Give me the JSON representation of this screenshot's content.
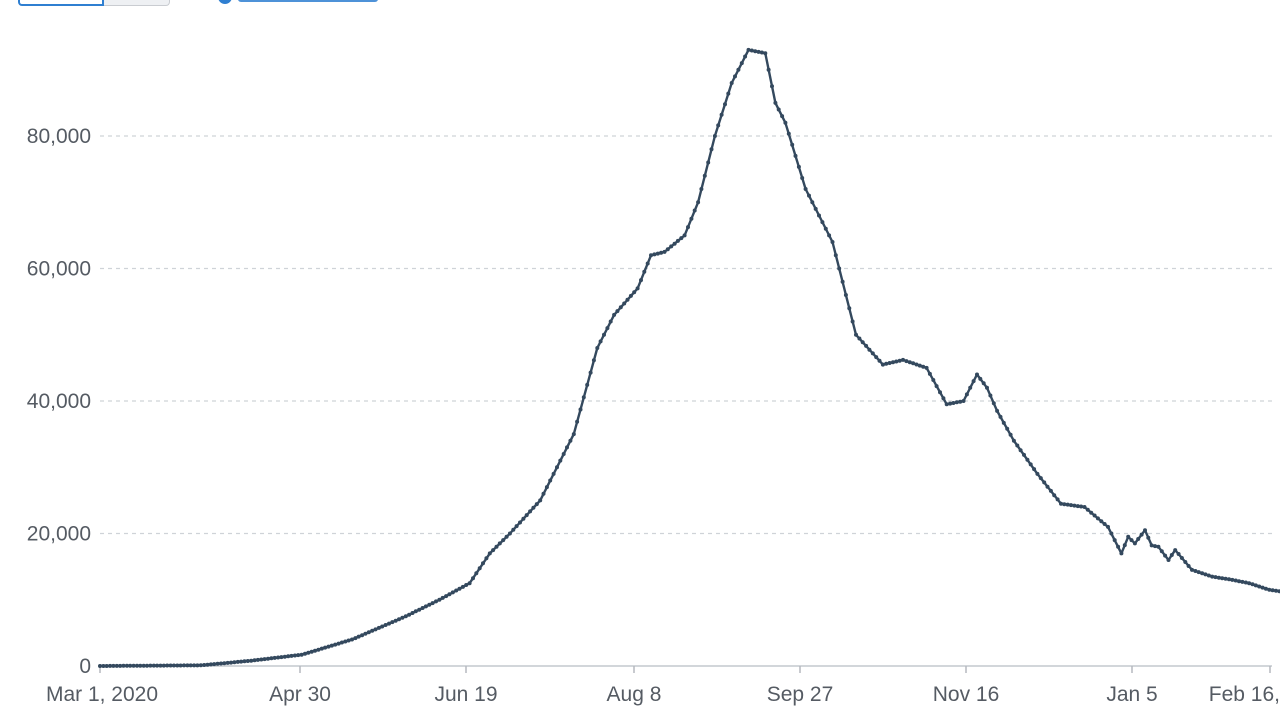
{
  "controls": {
    "toggle_icons": [
      "linear-toggle",
      "log-toggle"
    ],
    "legend_icon": "series-dot-icon"
  },
  "colors": {
    "line": "#34495e",
    "grid": "#cfd3d8",
    "accent": "#2f7fd1",
    "tick": "#555b63"
  },
  "chart_data": {
    "type": "line",
    "title": "",
    "xlabel": "",
    "ylabel": "",
    "ylim": [
      0,
      96000
    ],
    "grid": true,
    "x_ticks": [
      "Mar 1, 2020",
      "Apr 30",
      "Jun 19",
      "Aug 8",
      "Sep 27",
      "Nov 16",
      "Jan 5",
      "Feb 16,"
    ],
    "y_ticks": [
      "0",
      "20,000",
      "40,000",
      "60,000",
      "80,000"
    ],
    "y_tick_values": [
      0,
      20000,
      40000,
      60000,
      80000
    ],
    "series": [
      {
        "name": "",
        "x": [
          "2020-03-01",
          "2020-03-15",
          "2020-03-31",
          "2020-04-15",
          "2020-04-30",
          "2020-05-15",
          "2020-05-31",
          "2020-06-10",
          "2020-06-19",
          "2020-06-25",
          "2020-07-01",
          "2020-07-10",
          "2020-07-20",
          "2020-07-27",
          "2020-08-01",
          "2020-08-08",
          "2020-08-12",
          "2020-08-16",
          "2020-08-22",
          "2020-08-26",
          "2020-08-31",
          "2020-09-05",
          "2020-09-10",
          "2020-09-15",
          "2020-09-18",
          "2020-09-21",
          "2020-09-27",
          "2020-10-05",
          "2020-10-12",
          "2020-10-20",
          "2020-10-26",
          "2020-11-02",
          "2020-11-08",
          "2020-11-13",
          "2020-11-17",
          "2020-11-20",
          "2020-11-23",
          "2020-11-28",
          "2020-12-05",
          "2020-12-12",
          "2020-12-19",
          "2020-12-26",
          "2020-12-30",
          "2021-01-01",
          "2021-01-03",
          "2021-01-06",
          "2021-01-08",
          "2021-01-10",
          "2021-01-13",
          "2021-01-15",
          "2021-01-20",
          "2021-01-26",
          "2021-02-01",
          "2021-02-06",
          "2021-02-12",
          "2021-02-16"
        ],
        "y": [
          0,
          50,
          100,
          800,
          1700,
          4000,
          7500,
          10000,
          12500,
          17000,
          20000,
          25000,
          35000,
          48000,
          53000,
          57000,
          62000,
          62500,
          65000,
          70000,
          80000,
          88000,
          93000,
          92500,
          85000,
          82000,
          72000,
          64000,
          50000,
          45500,
          46200,
          45000,
          39500,
          40000,
          44000,
          42000,
          38500,
          34000,
          29000,
          24500,
          24000,
          21000,
          17000,
          19500,
          18500,
          20500,
          18200,
          18000,
          16000,
          17500,
          14500,
          13500,
          13000,
          12500,
          11500,
          11200
        ]
      }
    ]
  }
}
